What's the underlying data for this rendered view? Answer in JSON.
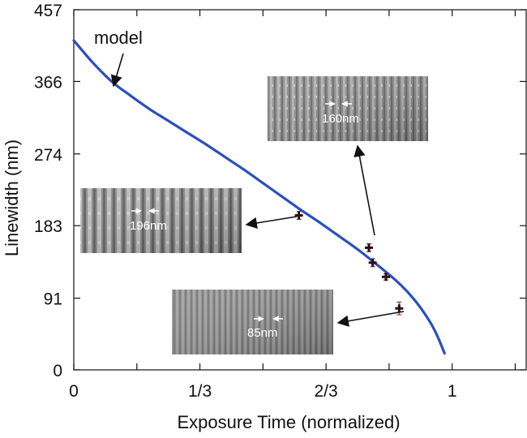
{
  "chart_data": {
    "type": "line",
    "xlabel": "Exposure Time (normalized)",
    "ylabel": "Linewidth (nm)",
    "xlim": [
      0,
      1.2
    ],
    "ylim": [
      0,
      457
    ],
    "x_ticks": [
      0,
      0.1667,
      0.3333,
      0.5,
      0.6667,
      0.8333,
      1.0,
      1.1667
    ],
    "x_tick_labels": [
      "0",
      "",
      "1/3",
      "",
      "2/3",
      "",
      "1",
      ""
    ],
    "y_ticks": [
      0,
      91,
      183,
      274,
      366,
      457
    ],
    "y_tick_labels": [
      "0",
      "91",
      "183",
      "274",
      "366",
      "457"
    ],
    "grid": false,
    "series": [
      {
        "name": "model",
        "kind": "line",
        "color": "#2a4fbf",
        "x": [
          0.0,
          0.05,
          0.1,
          0.15,
          0.2,
          0.25,
          0.3,
          0.35,
          0.4,
          0.45,
          0.5,
          0.55,
          0.6,
          0.65,
          0.7,
          0.75,
          0.8,
          0.85,
          0.88,
          0.91,
          0.94,
          0.96,
          0.98
        ],
        "y": [
          418,
          390,
          366,
          348,
          331,
          316,
          301,
          286,
          270,
          254,
          237,
          220,
          203,
          187,
          170,
          153,
          134,
          114,
          100,
          83,
          62,
          44,
          21
        ]
      },
      {
        "name": "",
        "kind": "scatter",
        "color": "#2b1010",
        "error_color": "#b03030",
        "x": [
          0.595,
          0.78,
          0.79,
          0.825,
          0.86
        ],
        "y": [
          196,
          155,
          136,
          118,
          78
        ],
        "xerr": [
          0.008,
          0.008,
          0.008,
          0.008,
          0.008
        ],
        "yerr": [
          5,
          5,
          5,
          4,
          8
        ]
      }
    ],
    "annotations": [
      {
        "text": "model"
      }
    ],
    "insets": [
      {
        "label": "160nm"
      },
      {
        "label": "196nm"
      },
      {
        "label": "85nm"
      }
    ]
  }
}
